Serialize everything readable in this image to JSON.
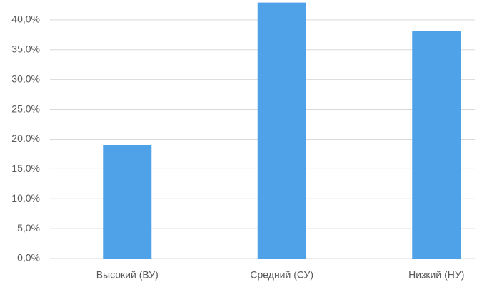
{
  "chart_data": {
    "type": "bar",
    "categories": [
      "Высокий (ВУ)",
      "Средний (СУ)",
      "Низкий (НУ)"
    ],
    "values": [
      19.0,
      42.9,
      38.1
    ],
    "color": "#4fa1e8",
    "ylim": [
      0,
      45
    ],
    "yticks": [
      {
        "value": 0,
        "label": "0,0%"
      },
      {
        "value": 5,
        "label": "5,0%"
      },
      {
        "value": 10,
        "label": "10,0%"
      },
      {
        "value": 15,
        "label": "15,0%"
      },
      {
        "value": 20,
        "label": "20,0%"
      },
      {
        "value": 25,
        "label": "25,0%"
      },
      {
        "value": 30,
        "label": "30,0%"
      },
      {
        "value": 35,
        "label": "35,0%"
      },
      {
        "value": 40,
        "label": "40,0%"
      }
    ],
    "grid": true
  }
}
